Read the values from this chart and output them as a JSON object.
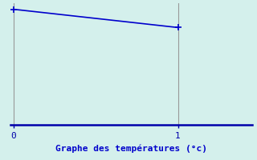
{
  "x": [
    0,
    1
  ],
  "y": [
    9.5,
    8.0
  ],
  "line_color": "#0000cc",
  "marker": "+",
  "marker_size": 6,
  "marker_color": "#0000cc",
  "background_color": "#d4f0ec",
  "axis_bottom_color": "#0000aa",
  "vline_color": "#999999",
  "xlabel": "Graphe des températures (°c)",
  "xlabel_color": "#0000cc",
  "xlabel_fontsize": 8,
  "xticks": [
    0,
    1
  ],
  "xtick_labels": [
    "0",
    "1"
  ],
  "ylim": [
    0,
    10
  ],
  "xlim": [
    -0.02,
    1.45
  ],
  "tick_color": "#0000aa",
  "tick_fontsize": 8,
  "line_width": 1.2,
  "marker_edge_width": 1.2
}
